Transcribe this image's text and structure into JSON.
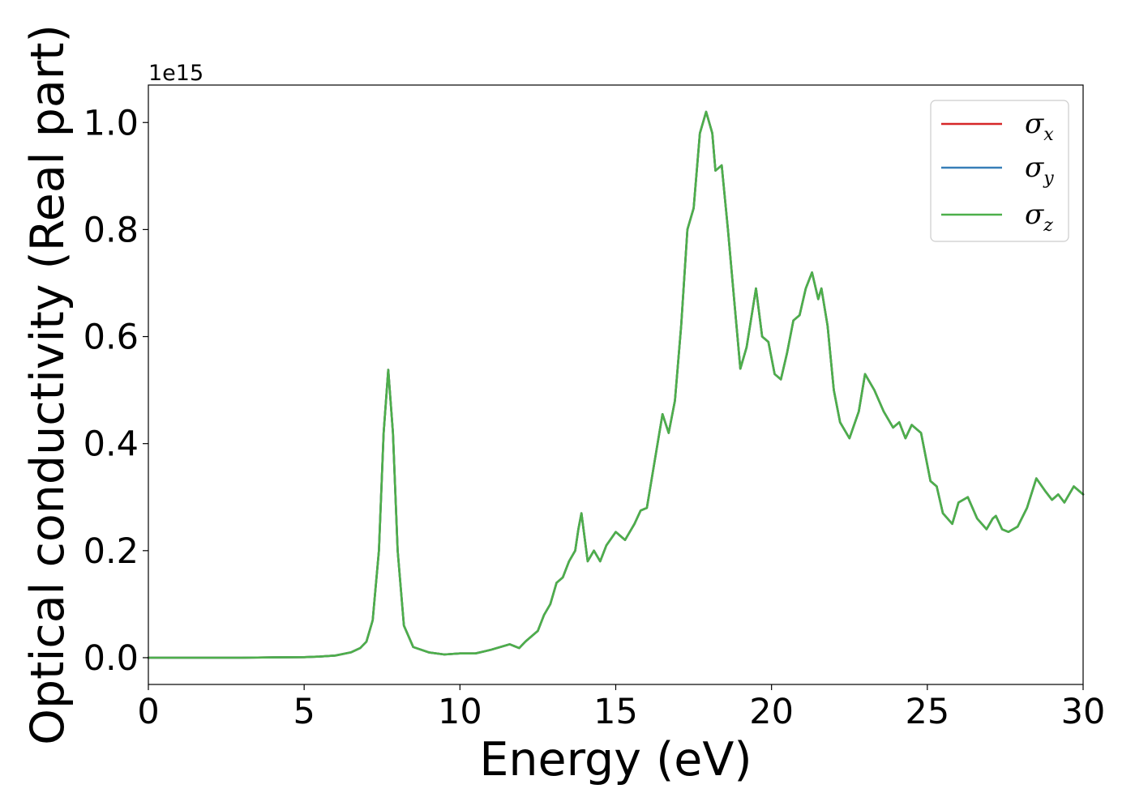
{
  "chart_data": {
    "type": "line",
    "xlabel": "Energy (eV)",
    "ylabel": "Optical conductivity (Real part)",
    "y_offset_text": "1e15",
    "xlim": [
      0,
      30
    ],
    "ylim": [
      -0.05,
      1.07
    ],
    "x_ticks": [
      0,
      5,
      10,
      15,
      20,
      25,
      30
    ],
    "y_ticks": [
      0.0,
      0.2,
      0.4,
      0.6,
      0.8,
      1.0
    ],
    "x_tick_labels": [
      "0",
      "5",
      "10",
      "15",
      "20",
      "25",
      "30"
    ],
    "y_tick_labels": [
      "0.0",
      "0.2",
      "0.4",
      "0.6",
      "0.8",
      "1.0"
    ],
    "grid": false,
    "legend_position": "top-right",
    "colors": {
      "x": "#d62728",
      "y": "#377eb8",
      "z": "#4daf4a"
    },
    "x": [
      0,
      1,
      2,
      3,
      4,
      5,
      5.5,
      6,
      6.5,
      6.8,
      7.0,
      7.2,
      7.4,
      7.55,
      7.7,
      7.85,
      8.0,
      8.2,
      8.5,
      9.0,
      9.5,
      10.0,
      10.5,
      10.8,
      11.0,
      11.3,
      11.6,
      11.9,
      12.1,
      12.3,
      12.5,
      12.7,
      12.9,
      13.1,
      13.3,
      13.5,
      13.7,
      13.8,
      13.9,
      14.1,
      14.3,
      14.5,
      14.7,
      15.0,
      15.3,
      15.6,
      15.8,
      16.0,
      16.2,
      16.4,
      16.5,
      16.7,
      16.9,
      17.1,
      17.3,
      17.5,
      17.7,
      17.9,
      18.1,
      18.2,
      18.4,
      18.6,
      18.8,
      19.0,
      19.2,
      19.5,
      19.7,
      19.9,
      20.1,
      20.3,
      20.5,
      20.7,
      20.9,
      21.1,
      21.3,
      21.5,
      21.6,
      21.8,
      22.0,
      22.2,
      22.5,
      22.8,
      23.0,
      23.3,
      23.6,
      23.9,
      24.1,
      24.3,
      24.5,
      24.8,
      25.1,
      25.3,
      25.5,
      25.8,
      26.0,
      26.3,
      26.6,
      26.9,
      27.1,
      27.2,
      27.4,
      27.6,
      27.9,
      28.2,
      28.5,
      28.8,
      29.0,
      29.2,
      29.4,
      29.7,
      30.0
    ],
    "series": [
      {
        "name": "σx",
        "values": [
          0,
          0,
          0,
          0,
          0.0005,
          0.001,
          0.002,
          0.004,
          0.01,
          0.018,
          0.03,
          0.07,
          0.2,
          0.42,
          0.538,
          0.42,
          0.2,
          0.06,
          0.02,
          0.01,
          0.006,
          0.008,
          0.008,
          0.012,
          0.015,
          0.02,
          0.025,
          0.018,
          0.03,
          0.04,
          0.05,
          0.08,
          0.1,
          0.14,
          0.15,
          0.18,
          0.2,
          0.24,
          0.27,
          0.18,
          0.2,
          0.18,
          0.21,
          0.235,
          0.22,
          0.25,
          0.275,
          0.28,
          0.35,
          0.42,
          0.455,
          0.42,
          0.48,
          0.62,
          0.8,
          0.84,
          0.98,
          1.02,
          0.98,
          0.91,
          0.92,
          0.8,
          0.67,
          0.54,
          0.58,
          0.69,
          0.6,
          0.59,
          0.53,
          0.52,
          0.57,
          0.63,
          0.64,
          0.69,
          0.72,
          0.67,
          0.69,
          0.62,
          0.5,
          0.44,
          0.41,
          0.46,
          0.53,
          0.5,
          0.46,
          0.43,
          0.44,
          0.41,
          0.435,
          0.42,
          0.33,
          0.32,
          0.27,
          0.25,
          0.29,
          0.3,
          0.26,
          0.24,
          0.26,
          0.265,
          0.24,
          0.235,
          0.245,
          0.28,
          0.335,
          0.31,
          0.295,
          0.305,
          0.29,
          0.32,
          0.305
        ]
      },
      {
        "name": "σy",
        "values": [
          0,
          0,
          0,
          0,
          0.0005,
          0.001,
          0.002,
          0.004,
          0.01,
          0.018,
          0.03,
          0.07,
          0.2,
          0.42,
          0.538,
          0.42,
          0.2,
          0.06,
          0.02,
          0.01,
          0.006,
          0.008,
          0.008,
          0.012,
          0.015,
          0.02,
          0.025,
          0.018,
          0.03,
          0.04,
          0.05,
          0.08,
          0.1,
          0.14,
          0.15,
          0.18,
          0.2,
          0.24,
          0.27,
          0.18,
          0.2,
          0.18,
          0.21,
          0.235,
          0.22,
          0.25,
          0.275,
          0.28,
          0.35,
          0.42,
          0.455,
          0.42,
          0.48,
          0.62,
          0.8,
          0.84,
          0.98,
          1.02,
          0.98,
          0.91,
          0.92,
          0.8,
          0.67,
          0.54,
          0.58,
          0.69,
          0.6,
          0.59,
          0.53,
          0.52,
          0.57,
          0.63,
          0.64,
          0.69,
          0.72,
          0.67,
          0.69,
          0.62,
          0.5,
          0.44,
          0.41,
          0.46,
          0.53,
          0.5,
          0.46,
          0.43,
          0.44,
          0.41,
          0.435,
          0.42,
          0.33,
          0.32,
          0.27,
          0.25,
          0.29,
          0.3,
          0.26,
          0.24,
          0.26,
          0.265,
          0.24,
          0.235,
          0.245,
          0.28,
          0.335,
          0.31,
          0.295,
          0.305,
          0.29,
          0.32,
          0.305
        ]
      },
      {
        "name": "σz",
        "values": [
          0,
          0,
          0,
          0,
          0.0005,
          0.001,
          0.002,
          0.004,
          0.01,
          0.018,
          0.03,
          0.07,
          0.2,
          0.42,
          0.538,
          0.42,
          0.2,
          0.06,
          0.02,
          0.01,
          0.006,
          0.008,
          0.008,
          0.012,
          0.015,
          0.02,
          0.025,
          0.018,
          0.03,
          0.04,
          0.05,
          0.08,
          0.1,
          0.14,
          0.15,
          0.18,
          0.2,
          0.24,
          0.27,
          0.18,
          0.2,
          0.18,
          0.21,
          0.235,
          0.22,
          0.25,
          0.275,
          0.28,
          0.35,
          0.42,
          0.455,
          0.42,
          0.48,
          0.62,
          0.8,
          0.84,
          0.98,
          1.02,
          0.98,
          0.91,
          0.92,
          0.8,
          0.67,
          0.54,
          0.58,
          0.69,
          0.6,
          0.59,
          0.53,
          0.52,
          0.57,
          0.63,
          0.64,
          0.69,
          0.72,
          0.67,
          0.69,
          0.62,
          0.5,
          0.44,
          0.41,
          0.46,
          0.53,
          0.5,
          0.46,
          0.43,
          0.44,
          0.41,
          0.435,
          0.42,
          0.33,
          0.32,
          0.27,
          0.25,
          0.29,
          0.3,
          0.26,
          0.24,
          0.26,
          0.265,
          0.24,
          0.235,
          0.245,
          0.28,
          0.335,
          0.31,
          0.295,
          0.305,
          0.29,
          0.32,
          0.305
        ]
      }
    ],
    "legend": [
      {
        "symbol": "σ",
        "subscript": "x",
        "color_key": "x"
      },
      {
        "symbol": "σ",
        "subscript": "y",
        "color_key": "y"
      },
      {
        "symbol": "σ",
        "subscript": "z",
        "color_key": "z"
      }
    ]
  }
}
